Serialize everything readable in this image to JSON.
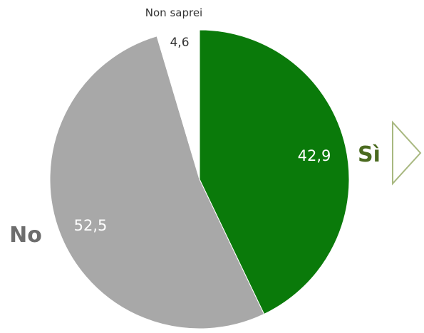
{
  "chart_data": {
    "type": "pie",
    "slices": [
      {
        "label": "Sì",
        "value": 42.9,
        "value_label": "42,9",
        "color": "#0a7a0a"
      },
      {
        "label": "No",
        "value": 52.5,
        "value_label": "52,5",
        "color": "#a8a8a8"
      },
      {
        "label": "Non saprei",
        "value": 4.6,
        "value_label": "4,6",
        "color": "#ffffff"
      }
    ],
    "start_angle": "top",
    "direction": "clockwise",
    "arrow_icon": "chevron-right-outline-icon"
  }
}
